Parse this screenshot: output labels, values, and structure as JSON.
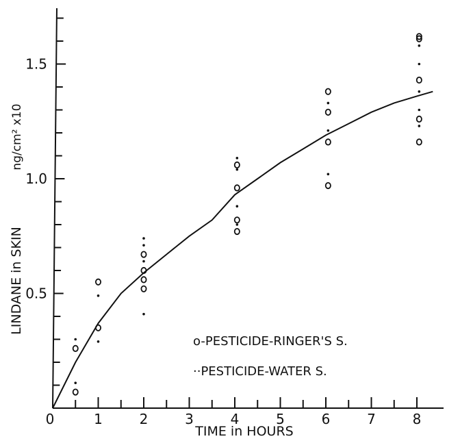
{
  "chart_data": {
    "type": "scatter",
    "xlabel": "TIME in HOURS",
    "ylabel_name": "LINDANE in SKIN",
    "ylabel_unit": "ng/cm² x10",
    "x_ticks": [
      "0",
      "1",
      "2",
      "3",
      "4",
      "5",
      "6",
      "7",
      "8"
    ],
    "y_ticks": [
      "0.5",
      "1.0",
      "1.5"
    ],
    "xlim": [
      0,
      8.4
    ],
    "ylim": [
      0,
      1.75
    ],
    "legend": {
      "placement": "bottom-right",
      "entries": [
        "o-PESTICIDE-RINGER'S S.",
        "··PESTICIDE-WATER S."
      ]
    },
    "series": [
      {
        "name": "PESTICIDE-RINGER'S S.",
        "marker": "circle",
        "points": [
          [
            0.5,
            0.07
          ],
          [
            0.5,
            0.26
          ],
          [
            1.0,
            0.35
          ],
          [
            1.0,
            0.55
          ],
          [
            2.0,
            0.52
          ],
          [
            2.0,
            0.56
          ],
          [
            2.0,
            0.6
          ],
          [
            2.0,
            0.67
          ],
          [
            4.05,
            0.77
          ],
          [
            4.05,
            0.82
          ],
          [
            4.05,
            0.96
          ],
          [
            4.05,
            1.06
          ],
          [
            6.05,
            0.97
          ],
          [
            6.05,
            1.16
          ],
          [
            6.05,
            1.29
          ],
          [
            6.05,
            1.38
          ],
          [
            8.05,
            1.16
          ],
          [
            8.05,
            1.26
          ],
          [
            8.05,
            1.43
          ],
          [
            8.05,
            1.61
          ],
          [
            8.05,
            1.62
          ]
        ]
      },
      {
        "name": "PESTICIDE-WATER S.",
        "marker": "dot",
        "points": [
          [
            0.5,
            0.11
          ],
          [
            0.5,
            0.3
          ],
          [
            1.0,
            0.29
          ],
          [
            1.0,
            0.49
          ],
          [
            2.0,
            0.41
          ],
          [
            2.0,
            0.64
          ],
          [
            2.0,
            0.71
          ],
          [
            2.0,
            0.74
          ],
          [
            4.05,
            0.8
          ],
          [
            4.05,
            0.88
          ],
          [
            4.05,
            1.04
          ],
          [
            4.05,
            1.09
          ],
          [
            6.05,
            1.02
          ],
          [
            6.05,
            1.21
          ],
          [
            6.05,
            1.33
          ],
          [
            8.05,
            1.23
          ],
          [
            8.05,
            1.3
          ],
          [
            8.05,
            1.38
          ],
          [
            8.05,
            1.5
          ],
          [
            8.05,
            1.58
          ]
        ]
      }
    ],
    "curve": {
      "x": [
        0,
        0.5,
        1,
        1.5,
        2,
        2.5,
        3,
        3.5,
        4,
        4.5,
        5,
        5.5,
        6,
        6.5,
        7,
        7.5,
        8,
        8.35
      ],
      "y": [
        0,
        0.2,
        0.37,
        0.5,
        0.59,
        0.67,
        0.75,
        0.82,
        0.93,
        1.0,
        1.07,
        1.13,
        1.19,
        1.24,
        1.29,
        1.33,
        1.36,
        1.38
      ]
    }
  }
}
